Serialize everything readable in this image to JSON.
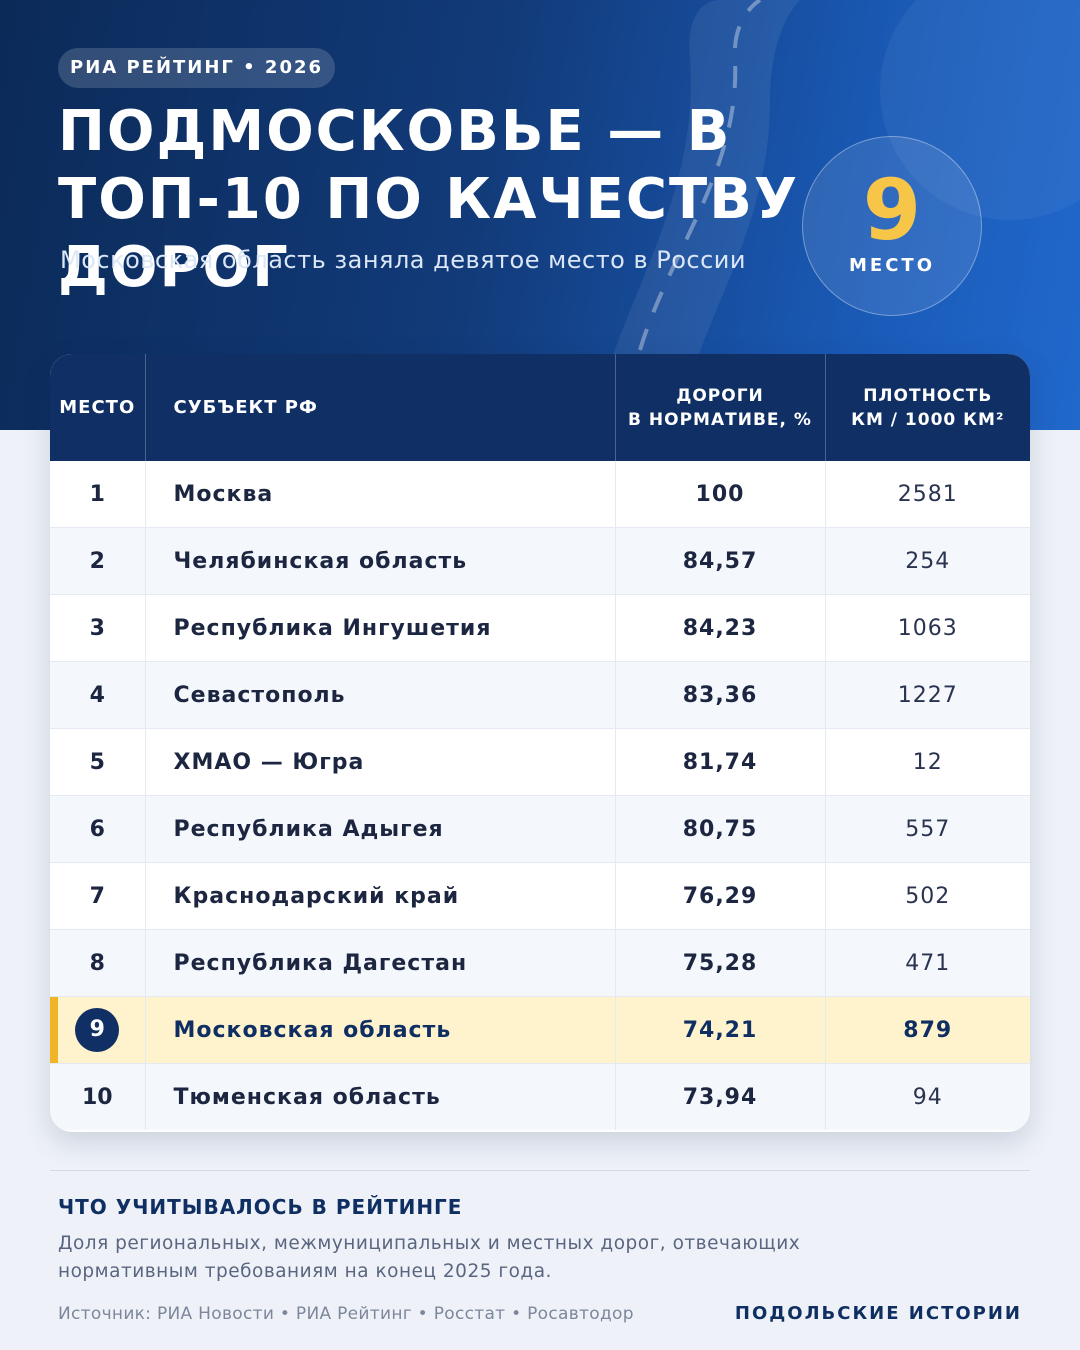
{
  "header": {
    "badge": "РИА РЕЙТИНГ • 2026",
    "title": "ПОДМОСКОВЬЕ — В ТОП-10 ПО КАЧЕСТВУ ДОРОГ",
    "subtitle": "Московская область заняла девятое место в России",
    "place_number": "9",
    "place_label": "МЕСТО"
  },
  "table": {
    "columns": {
      "rank": "МЕСТО",
      "subject": "СУБЪЕКТ РФ",
      "norm_line1": "ДОРОГИ",
      "norm_line2": "В НОРМАТИВЕ, %",
      "density_line1": "ПЛОТНОСТЬ",
      "density_line2": "КМ / 1000 КМ²"
    },
    "rows": [
      {
        "rank": "1",
        "subject": "Москва",
        "norm": "100",
        "density": "2581"
      },
      {
        "rank": "2",
        "subject": "Челябинская область",
        "norm": "84,57",
        "density": "254"
      },
      {
        "rank": "3",
        "subject": "Республика Ингушетия",
        "norm": "84,23",
        "density": "1063"
      },
      {
        "rank": "4",
        "subject": "Севастополь",
        "norm": "83,36",
        "density": "1227"
      },
      {
        "rank": "5",
        "subject": "ХМАО — Югра",
        "norm": "81,74",
        "density": "12"
      },
      {
        "rank": "6",
        "subject": "Республика Адыгея",
        "norm": "80,75",
        "density": "557"
      },
      {
        "rank": "7",
        "subject": "Краснодарский край",
        "norm": "76,29",
        "density": "502"
      },
      {
        "rank": "8",
        "subject": "Республика Дагестан",
        "norm": "75,28",
        "density": "471"
      },
      {
        "rank": "9",
        "subject": "Московская область",
        "norm": "74,21",
        "density": "879"
      },
      {
        "rank": "10",
        "subject": "Тюменская область",
        "norm": "73,94",
        "density": "94"
      }
    ],
    "highlight_color": "#fff3cd",
    "accent_color": "#f0b429"
  },
  "footer": {
    "note_title": "ЧТО УЧИТЫВАЛОСЬ В РЕЙТИНГЕ",
    "note_text": "Доля региональных, межмуниципальных и местных дорог, отвечающих нормативным требованиям на конец 2025 года.",
    "source": "Источник: РИА Новости • РИА Рейтинг • Росстат • Росавтодор",
    "brand": "ПОДОЛЬСКИЕ ИСТОРИИ"
  },
  "colors": {
    "primary": "#102f64",
    "gold": "#f7c548"
  }
}
